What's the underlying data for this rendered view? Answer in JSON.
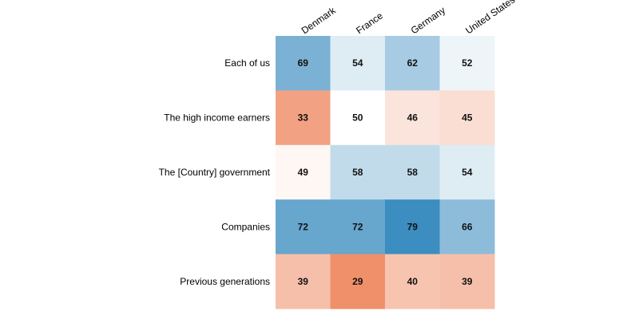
{
  "chart_data": {
    "type": "heatmap",
    "title": "",
    "xlabel": "",
    "ylabel": "",
    "x_categories": [
      "Denmark",
      "France",
      "Germany",
      "United States"
    ],
    "y_categories": [
      "Each of us",
      "The high income earners",
      "The [Country] government",
      "Companies",
      "Previous generations"
    ],
    "values": [
      [
        69,
        54,
        62,
        52
      ],
      [
        33,
        50,
        46,
        45
      ],
      [
        49,
        58,
        58,
        54
      ],
      [
        72,
        72,
        79,
        66
      ],
      [
        39,
        29,
        40,
        39
      ]
    ],
    "color_scale": {
      "type": "diverging",
      "low_color": "#ef8a62",
      "mid_color": "#ffffff",
      "high_color": "#2b83ba",
      "domain": [
        29,
        50,
        79
      ]
    },
    "legend": "none",
    "grid": false
  }
}
